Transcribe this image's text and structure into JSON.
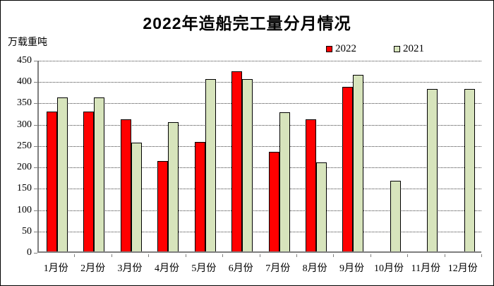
{
  "title": "2022年造船完工量分月情况",
  "unit_label": "万载重吨",
  "legend": {
    "items": [
      {
        "label": "2022",
        "color": "#ff0000"
      },
      {
        "label": "2021",
        "color": "#d7e4bc"
      }
    ]
  },
  "colors": {
    "bar_2022": "#ff0000",
    "bar_2021": "#d7e4bc",
    "bar_border": "#000000",
    "axis": "#7f7f7f",
    "gridline": "#404040",
    "frame_border": "#000000",
    "background": "#ffffff"
  },
  "chart_data": {
    "type": "bar",
    "title": "2022年造船完工量分月情况",
    "ylabel": "万载重吨",
    "xlabel": "",
    "categories": [
      "1月份",
      "2月份",
      "3月份",
      "4月份",
      "5月份",
      "6月份",
      "7月份",
      "8月份",
      "9月份",
      "10月份",
      "11月份",
      "12月份"
    ],
    "series": [
      {
        "name": "2022",
        "color": "#ff0000",
        "values": [
          327,
          327,
          309,
          211,
          256,
          422,
          234,
          309,
          386,
          null,
          null,
          null
        ]
      },
      {
        "name": "2021",
        "color": "#d7e4bc",
        "values": [
          361,
          361,
          255,
          302,
          404,
          404,
          326,
          208,
          414,
          165,
          380,
          380
        ]
      }
    ],
    "ylim": [
      0,
      450
    ],
    "yticks": [
      0,
      50,
      100,
      150,
      200,
      250,
      300,
      350,
      400,
      450
    ],
    "grid": "horizontal-dashed",
    "legend_position": "top-right"
  }
}
